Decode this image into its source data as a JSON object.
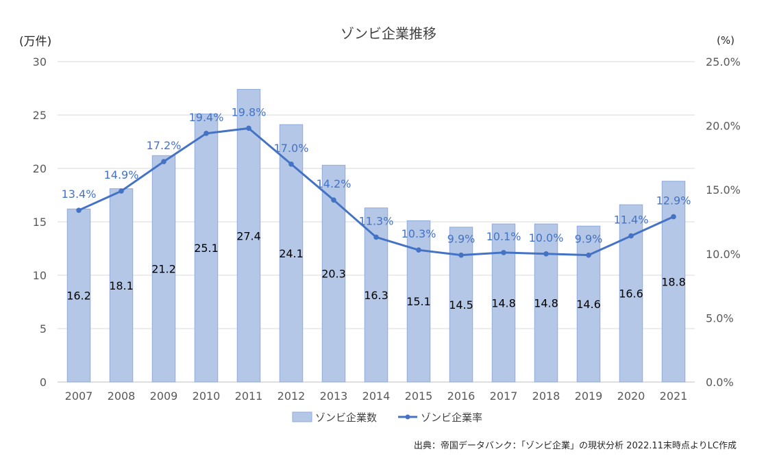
{
  "chart_data": {
    "type": "bar",
    "title": "ゾンビ企業推移",
    "ylabel_left": "(万件)",
    "ylabel_right": "(%)",
    "categories": [
      "2007",
      "2008",
      "2009",
      "2010",
      "2011",
      "2012",
      "2013",
      "2014",
      "2015",
      "2016",
      "2017",
      "2018",
      "2019",
      "2020",
      "2021"
    ],
    "left_axis": {
      "min": 0,
      "max": 30,
      "ticks": [
        "0",
        "5",
        "10",
        "15",
        "20",
        "25",
        "30"
      ]
    },
    "right_axis": {
      "min": 0,
      "max": 25,
      "ticks": [
        "0.0%",
        "5.0%",
        "10.0%",
        "15.0%",
        "20.0%",
        "25.0%"
      ]
    },
    "grid": true,
    "legend_position": "bottom",
    "series": [
      {
        "name": "ゾンビ企業数",
        "type": "bar",
        "axis": "left",
        "color": "#b4c7e7",
        "border_color": "#8faadc",
        "values": [
          16.2,
          18.1,
          21.2,
          25.1,
          27.4,
          24.1,
          20.3,
          16.3,
          15.1,
          14.5,
          14.8,
          14.8,
          14.6,
          16.6,
          18.8
        ],
        "labels": [
          "16.2",
          "18.1",
          "21.2",
          "25.1",
          "27.4",
          "24.1",
          "20.3",
          "16.3",
          "15.1",
          "14.5",
          "14.8",
          "14.8",
          "14.6",
          "16.6",
          "18.8"
        ]
      },
      {
        "name": "ゾンビ企業率",
        "type": "line",
        "axis": "right",
        "color": "#4472c4",
        "values": [
          13.4,
          14.9,
          17.2,
          19.4,
          19.8,
          17.0,
          14.2,
          11.3,
          10.3,
          9.9,
          10.1,
          10.0,
          9.9,
          11.4,
          12.9
        ],
        "labels": [
          "13.4%",
          "14.9%",
          "17.2%",
          "19.4%",
          "19.8%",
          "17.0%",
          "14.2%",
          "11.3%",
          "10.3%",
          "9.9%",
          "10.1%",
          "10.0%",
          "9.9%",
          "11.4%",
          "12.9%"
        ]
      }
    ],
    "source_note": "出典：帝国データバンク：「ゾンビ企業」の現状分析 2022.11末時点よりLC作成"
  }
}
